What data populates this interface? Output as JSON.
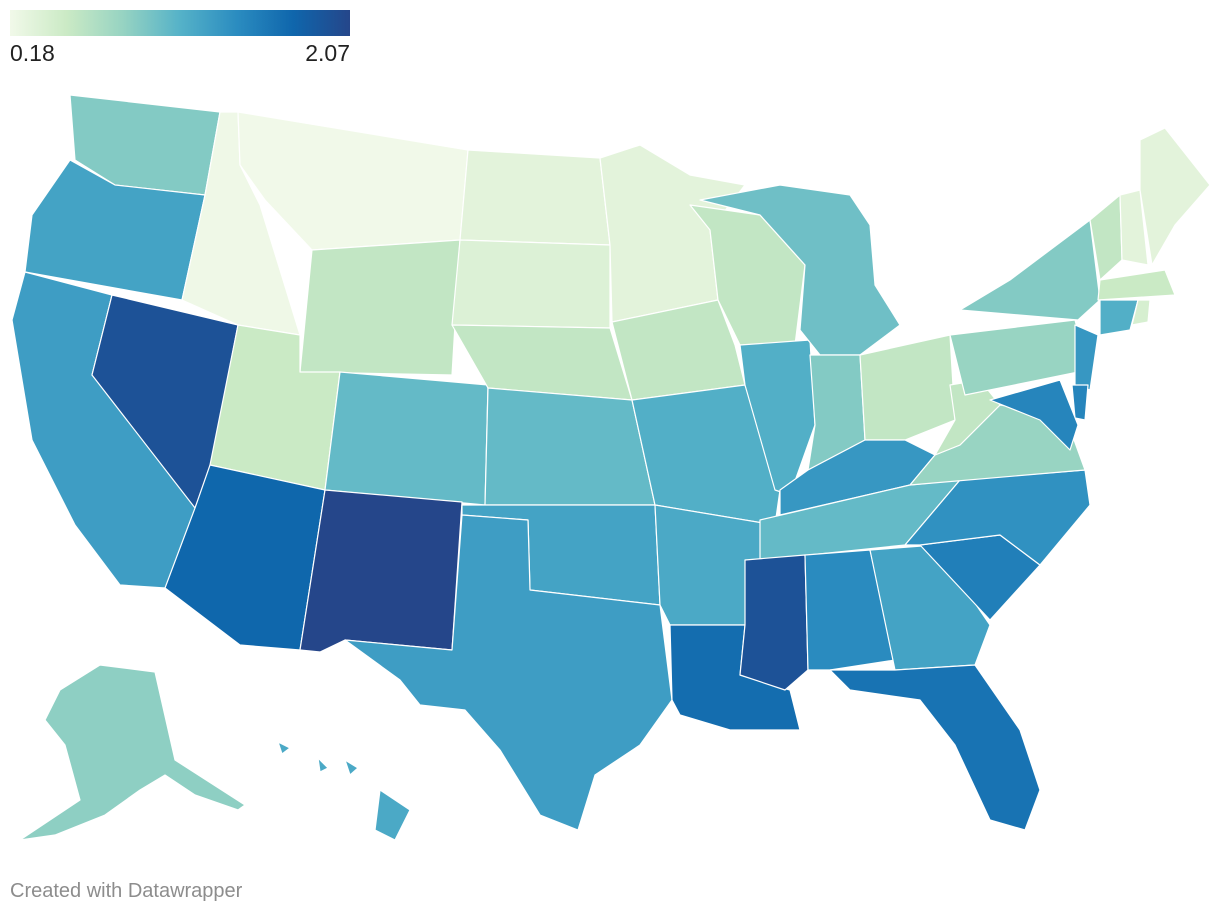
{
  "legend": {
    "min_label": "0.18",
    "max_label": "2.07",
    "gradient": [
      "#f1f9e9",
      "#cbeac5",
      "#96d3c2",
      "#55b2c8",
      "#2b8cc0",
      "#0f66ac",
      "#25468a"
    ]
  },
  "credit": "Created with Datawrapper",
  "chart_data": {
    "type": "choropleth",
    "scale": {
      "min": 0.18,
      "max": 2.07
    },
    "regions": [
      {
        "id": "WA",
        "value": 0.9
      },
      {
        "id": "OR",
        "value": 1.25
      },
      {
        "id": "CA",
        "value": 1.3
      },
      {
        "id": "NV",
        "value": 1.95
      },
      {
        "id": "ID",
        "value": 0.2
      },
      {
        "id": "MT",
        "value": 0.18
      },
      {
        "id": "WY",
        "value": 0.55
      },
      {
        "id": "UT",
        "value": 0.5
      },
      {
        "id": "AZ",
        "value": 1.75
      },
      {
        "id": "CO",
        "value": 1.05
      },
      {
        "id": "NM",
        "value": 2.07
      },
      {
        "id": "ND",
        "value": 0.3
      },
      {
        "id": "SD",
        "value": 0.35
      },
      {
        "id": "NE",
        "value": 0.55
      },
      {
        "id": "KS",
        "value": 1.05
      },
      {
        "id": "OK",
        "value": 1.25
      },
      {
        "id": "TX",
        "value": 1.3
      },
      {
        "id": "MN",
        "value": 0.3
      },
      {
        "id": "IA",
        "value": 0.55
      },
      {
        "id": "MO",
        "value": 1.15
      },
      {
        "id": "AR",
        "value": 1.2
      },
      {
        "id": "LA",
        "value": 1.7
      },
      {
        "id": "WI",
        "value": 0.55
      },
      {
        "id": "IL",
        "value": 1.15
      },
      {
        "id": "MI",
        "value": 1.0
      },
      {
        "id": "IN",
        "value": 0.9
      },
      {
        "id": "OH",
        "value": 0.55
      },
      {
        "id": "KY",
        "value": 1.35
      },
      {
        "id": "TN",
        "value": 1.05
      },
      {
        "id": "MS",
        "value": 1.95
      },
      {
        "id": "AL",
        "value": 1.45
      },
      {
        "id": "GA",
        "value": 1.25
      },
      {
        "id": "FL",
        "value": 1.65
      },
      {
        "id": "SC",
        "value": 1.55
      },
      {
        "id": "NC",
        "value": 1.4
      },
      {
        "id": "VA",
        "value": 0.8
      },
      {
        "id": "WV",
        "value": 0.55
      },
      {
        "id": "PA",
        "value": 0.8
      },
      {
        "id": "NY",
        "value": 0.9
      },
      {
        "id": "VT",
        "value": 0.55
      },
      {
        "id": "NH",
        "value": 0.3
      },
      {
        "id": "ME",
        "value": 0.3
      },
      {
        "id": "MA",
        "value": 0.5
      },
      {
        "id": "CT",
        "value": 1.15
      },
      {
        "id": "RI",
        "value": 0.4
      },
      {
        "id": "NJ",
        "value": 1.35
      },
      {
        "id": "DE",
        "value": 1.5
      },
      {
        "id": "MD",
        "value": 1.5
      },
      {
        "id": "AK",
        "value": 0.85
      },
      {
        "id": "HI",
        "value": 1.2
      }
    ]
  }
}
